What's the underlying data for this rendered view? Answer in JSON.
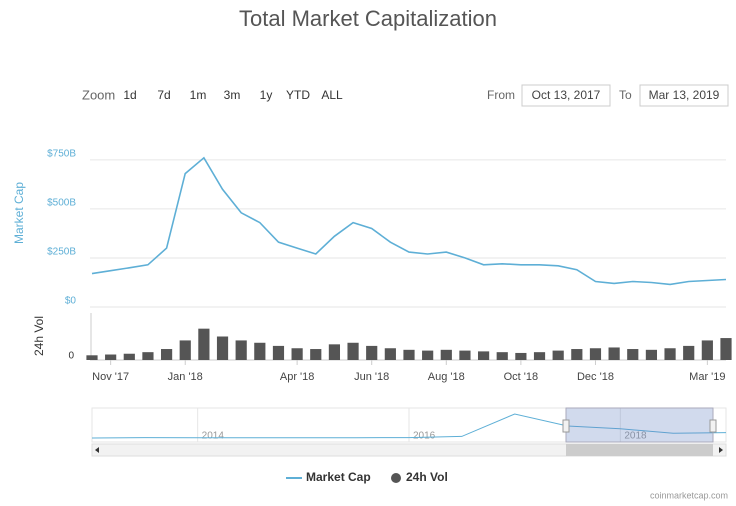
{
  "chart_data": {
    "type": "line",
    "title": "Total Market Capitalization",
    "range_selector": {
      "zoom_label": "Zoom",
      "buttons": [
        "1d",
        "7d",
        "1m",
        "3m",
        "1y",
        "YTD",
        "ALL"
      ],
      "from_label": "From",
      "from": "Oct 13, 2017",
      "to_label": "To",
      "to": "Mar 13, 2019"
    },
    "y_label": "Market Cap",
    "y2_label": "24h Vol",
    "categories": [
      null,
      "Nov '17",
      null,
      null,
      null,
      "Jan '18",
      null,
      null,
      null,
      null,
      null,
      "Apr '18",
      null,
      null,
      null,
      "Jun '18",
      null,
      null,
      null,
      "Aug '18",
      null,
      null,
      null,
      "Oct '18",
      null,
      null,
      null,
      "Dec '18",
      null,
      null,
      null,
      null,
      null,
      "Mar '19",
      null
    ],
    "ylim": [
      0,
      800
    ],
    "yticks": [
      {
        "value": 0,
        "label": "$0"
      },
      {
        "value": 250,
        "label": "$250B"
      },
      {
        "value": 500,
        "label": "$500B"
      },
      {
        "value": 750,
        "label": "$750B"
      }
    ],
    "y2lim": [
      0,
      60
    ],
    "y2ticks": [
      0
    ],
    "series": [
      {
        "name": "Market Cap",
        "color": "#5eafd6",
        "values": [
          170,
          185,
          200,
          215,
          300,
          680,
          760,
          600,
          480,
          430,
          330,
          300,
          270,
          360,
          430,
          400,
          330,
          280,
          270,
          280,
          250,
          215,
          220,
          215,
          215,
          210,
          190,
          130,
          120,
          130,
          125,
          115,
          130,
          135,
          140
        ]
      },
      {
        "name": "24h Vol",
        "color": "#555555",
        "axis": "y2",
        "values": [
          6,
          7,
          8,
          10,
          14,
          25,
          40,
          30,
          25,
          22,
          18,
          15,
          14,
          20,
          22,
          18,
          15,
          13,
          12,
          13,
          12,
          11,
          10,
          9,
          10,
          12,
          14,
          15,
          16,
          14,
          13,
          15,
          18,
          25,
          28
        ]
      }
    ],
    "navigator": {
      "categories": [
        null,
        null,
        "2014",
        null,
        null,
        null,
        "2016",
        null,
        null,
        null,
        "2018",
        null,
        null
      ],
      "values": [
        1,
        10,
        8,
        5,
        4,
        7,
        10,
        40,
        600,
        300,
        230,
        120,
        135
      ]
    },
    "credit": "coinmarketcap.com"
  }
}
